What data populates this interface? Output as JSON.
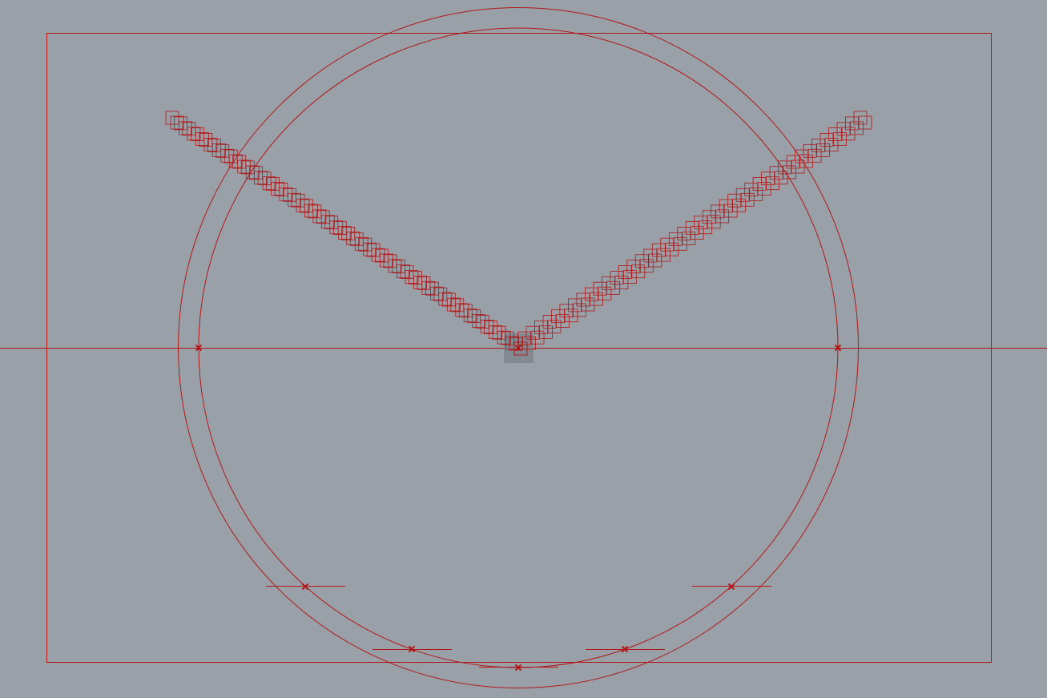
{
  "viewport": {
    "name": "cad-viewport",
    "background_color": "#9aa0a8",
    "geometry_color": "#b01818",
    "selection_fill_color": "#7e858d"
  },
  "grid_strips": {
    "left_strip": {
      "cells": 42
    },
    "right_strip": {
      "cells": 42
    }
  },
  "points": [
    {
      "name": "point-center-marker"
    },
    {
      "name": "point-left-marker"
    },
    {
      "name": "point-right-marker"
    },
    {
      "name": "point-lower-left-marker"
    },
    {
      "name": "point-lower-right-marker"
    },
    {
      "name": "point-bottom-left-marker"
    },
    {
      "name": "point-bottom-right-marker"
    },
    {
      "name": "point-bottom-marker"
    }
  ]
}
